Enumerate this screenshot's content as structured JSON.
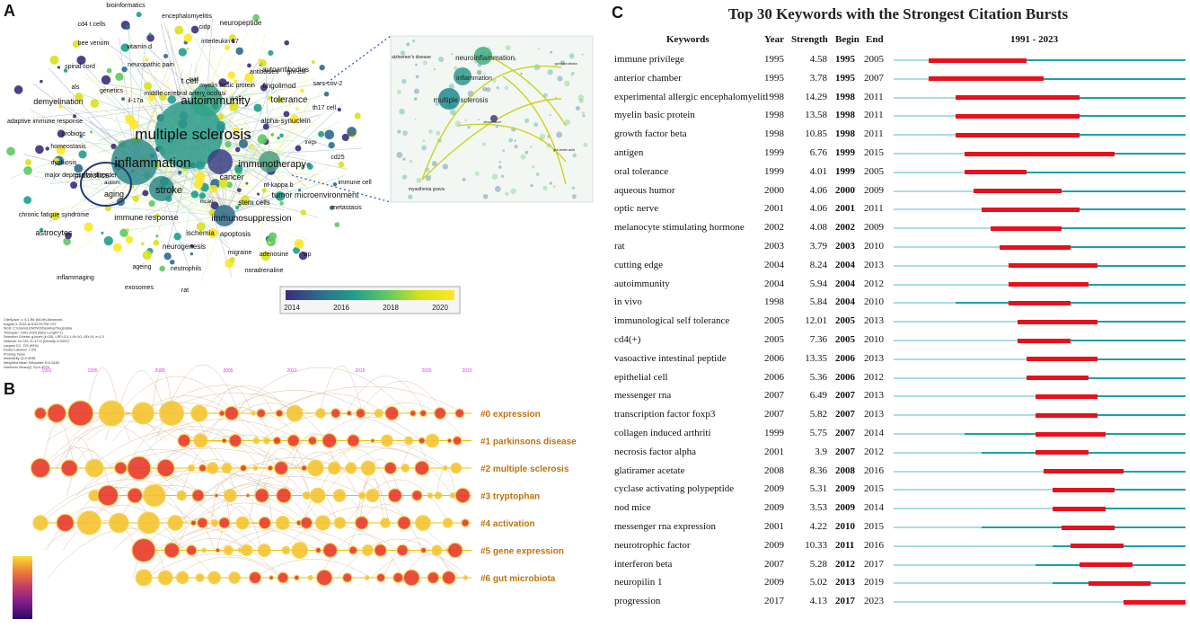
{
  "panel_letters": {
    "a": "A",
    "b": "B",
    "c": "C"
  },
  "chart_data": [
    {
      "type": "network",
      "panel": "A",
      "nodes": [
        {
          "label": "multiple sclerosis",
          "size": 5
        },
        {
          "label": "inflammation",
          "size": 4
        },
        {
          "label": "autoimmunity",
          "size": 3
        },
        {
          "label": "immunotherapy",
          "size": 2
        },
        {
          "label": "stroke",
          "size": 2
        },
        {
          "label": "tolerance",
          "size": 2
        },
        {
          "label": "immunosuppression",
          "size": 2
        },
        {
          "label": "immune response",
          "size": 2
        },
        {
          "label": "cancer",
          "size": 1
        },
        {
          "label": "aging",
          "size": 1
        },
        {
          "label": "probiotics",
          "size": 1
        },
        {
          "label": "demyelination",
          "size": 1
        },
        {
          "label": "t cell",
          "size": 1
        },
        {
          "label": "astrocytes",
          "size": 1
        },
        {
          "label": "apoptosis",
          "size": 1
        },
        {
          "label": "ischemia",
          "size": 1
        },
        {
          "label": "neurogenesis",
          "size": 1
        },
        {
          "label": "tumor microenvironment",
          "size": 1
        },
        {
          "label": "stem cells",
          "size": 1
        },
        {
          "label": "alpha-synuclein",
          "size": 1
        },
        {
          "label": "fingolimod",
          "size": 1
        },
        {
          "label": "autoantibodies",
          "size": 1
        },
        {
          "label": "neuropeptide",
          "size": 1
        },
        {
          "label": "encephalomyelitis",
          "size": 1
        },
        {
          "label": "bioinformatics",
          "size": 1
        },
        {
          "label": "cd4 t cells",
          "size": 1
        },
        {
          "label": "bee venom",
          "size": 1
        },
        {
          "label": "vitamin d",
          "size": 1
        },
        {
          "label": "interleukin 17",
          "size": 1
        },
        {
          "label": "cidp",
          "size": 1
        },
        {
          "label": "neuropathic pain",
          "size": 1
        },
        {
          "label": "spinal cord",
          "size": 1
        },
        {
          "label": "myelin basic protein",
          "size": 1
        },
        {
          "label": "middle cerebral artery occlusi",
          "size": 1
        },
        {
          "label": "antibodies",
          "size": 1
        },
        {
          "label": "gm-csf",
          "size": 1
        },
        {
          "label": "sars-cov-2",
          "size": 1
        },
        {
          "label": "th17 cell",
          "size": 1
        },
        {
          "label": "als",
          "size": 1
        },
        {
          "label": "genetics",
          "size": 1
        },
        {
          "label": "il-17a",
          "size": 1
        },
        {
          "label": "adaptive immune response",
          "size": 1
        },
        {
          "label": "probiotic",
          "size": 1
        },
        {
          "label": "homeostasis",
          "size": 1
        },
        {
          "label": "dysbiosis",
          "size": 1
        },
        {
          "label": "major depressive disorder",
          "size": 1
        },
        {
          "label": "autism",
          "size": 1
        },
        {
          "label": "nf-kappa b",
          "size": 1
        },
        {
          "label": "immune cell",
          "size": 1
        },
        {
          "label": "metastasis",
          "size": 1
        },
        {
          "label": "chronic fatigue syndrome",
          "size": 1
        },
        {
          "label": "migraine",
          "size": 1
        },
        {
          "label": "adenosine",
          "size": 1
        },
        {
          "label": "vip",
          "size": 1
        },
        {
          "label": "inflammaging",
          "size": 1
        },
        {
          "label": "ageing",
          "size": 1
        },
        {
          "label": "neutrophils",
          "size": 1
        },
        {
          "label": "noradrenaline",
          "size": 1
        },
        {
          "label": "exosomes",
          "size": 1
        },
        {
          "label": "rat",
          "size": 1
        },
        {
          "label": "cd25",
          "size": 1
        },
        {
          "label": "tregs",
          "size": 1
        },
        {
          "label": "il-35",
          "size": 1
        },
        {
          "label": "mait",
          "size": 1
        },
        {
          "label": "mcao",
          "size": 1
        }
      ],
      "inset_labels": [
        "neuroinflammation",
        "inflammation",
        "multiple sclerosis",
        "alzheimer's disease",
        "myasthenia gravis",
        "depression",
        "gut microbiota",
        "gut-brain axis"
      ],
      "colorbar": {
        "ticks": [
          "2014",
          "2016",
          "2018",
          "2020"
        ],
        "colors": [
          "#3b2c7a",
          "#2e6a8e",
          "#1f9d8a",
          "#5ec962",
          "#d8e219",
          "#fde725"
        ]
      },
      "info_text": [
        "CiteSpace, v. 6.1.R6 (64-bit) Advanced",
        "August 3, 2023 at 8:42:33 PM CST",
        "WoS: C:\\Users\\LENOVO\\Desktop\\Tregs\\data",
        "Timespan: 1991-2023 (Slice Length=1)",
        "Selection Criteria: g-index (k=25), LRF=3.0, L/N=10, LBY=5, e=1.0",
        "Network: N=729, E=1774 (Density=0.0067)",
        "Largest CC: 729 (99%)",
        "Nodes Labeled: 1.0%",
        "Pruning: None",
        "Modularity Q=0.3038",
        "Weighted Mean Silhouette S=0.6183",
        "Harmonic Mean(Q, S)=0.4075"
      ]
    },
    {
      "type": "timeline",
      "panel": "B",
      "year_ticks": [
        "1991",
        "1995",
        "2000",
        "2005",
        "2010",
        "2015",
        "2020",
        "2023"
      ],
      "clusters": [
        "#0 expression",
        "#1 parkinsons disease",
        "#2 multiple sclerosis",
        "#3 tryptophan",
        "#4 activation",
        "#5 gene expression",
        "#6 gut microbiota"
      ]
    },
    {
      "type": "table",
      "panel": "C",
      "title": "Top 30 Keywords with the Strongest Citation Bursts",
      "headers": {
        "keywords": "Keywords",
        "year": "Year",
        "strength": "Strength",
        "begin": "Begin",
        "end": "End",
        "range": "1991 - 2023"
      },
      "range_start": 1991,
      "range_end": 2023,
      "rows": [
        {
          "keyword": "immune privilege",
          "year": 1995,
          "strength": "4.58",
          "begin": 1995,
          "end": 2005
        },
        {
          "keyword": "anterior chamber",
          "year": 1995,
          "strength": "3.78",
          "begin": 1995,
          "end": 2007
        },
        {
          "keyword": "experimental allergic encephalomyeliti",
          "year": 1998,
          "strength": "14.29",
          "begin": 1998,
          "end": 2011
        },
        {
          "keyword": "myelin basic protein",
          "year": 1998,
          "strength": "13.58",
          "begin": 1998,
          "end": 2011
        },
        {
          "keyword": "growth factor beta",
          "year": 1998,
          "strength": "10.85",
          "begin": 1998,
          "end": 2011
        },
        {
          "keyword": "antigen",
          "year": 1999,
          "strength": "6.76",
          "begin": 1999,
          "end": 2015
        },
        {
          "keyword": "oral tolerance",
          "year": 1999,
          "strength": "4.01",
          "begin": 1999,
          "end": 2005
        },
        {
          "keyword": "aqueous humor",
          "year": 2000,
          "strength": "4.06",
          "begin": 2000,
          "end": 2009
        },
        {
          "keyword": "optic nerve",
          "year": 2001,
          "strength": "4.06",
          "begin": 2001,
          "end": 2011
        },
        {
          "keyword": "melanocyte stimulating hormone",
          "year": 2002,
          "strength": "4.08",
          "begin": 2002,
          "end": 2009
        },
        {
          "keyword": "rat",
          "year": 2003,
          "strength": "3.79",
          "begin": 2003,
          "end": 2010
        },
        {
          "keyword": "cutting edge",
          "year": 2004,
          "strength": "8.24",
          "begin": 2004,
          "end": 2013
        },
        {
          "keyword": "autoimmunity",
          "year": 2004,
          "strength": "5.94",
          "begin": 2004,
          "end": 2012
        },
        {
          "keyword": "in vivo",
          "year": 1998,
          "strength": "5.84",
          "begin": 2004,
          "end": 2010
        },
        {
          "keyword": "immunological self tolerance",
          "year": 2005,
          "strength": "12.01",
          "begin": 2005,
          "end": 2013
        },
        {
          "keyword": "cd4(+)",
          "year": 2005,
          "strength": "7.36",
          "begin": 2005,
          "end": 2010
        },
        {
          "keyword": "vasoactive intestinal peptide",
          "year": 2006,
          "strength": "13.35",
          "begin": 2006,
          "end": 2013
        },
        {
          "keyword": "epithelial cell",
          "year": 2006,
          "strength": "5.36",
          "begin": 2006,
          "end": 2012
        },
        {
          "keyword": "messenger rna",
          "year": 2007,
          "strength": "6.49",
          "begin": 2007,
          "end": 2013
        },
        {
          "keyword": "transcription factor foxp3",
          "year": 2007,
          "strength": "5.82",
          "begin": 2007,
          "end": 2013
        },
        {
          "keyword": "collagen induced arthriti",
          "year": 1999,
          "strength": "5.75",
          "begin": 2007,
          "end": 2014
        },
        {
          "keyword": "necrosis factor alpha",
          "year": 2001,
          "strength": "3.9",
          "begin": 2007,
          "end": 2012
        },
        {
          "keyword": "glatiramer acetate",
          "year": 2008,
          "strength": "8.36",
          "begin": 2008,
          "end": 2016
        },
        {
          "keyword": "cyclase activating polypeptide",
          "year": 2009,
          "strength": "5.31",
          "begin": 2009,
          "end": 2015
        },
        {
          "keyword": "nod mice",
          "year": 2009,
          "strength": "3.53",
          "begin": 2009,
          "end": 2014
        },
        {
          "keyword": "messenger rna expression",
          "year": 2001,
          "strength": "4.22",
          "begin": 2010,
          "end": 2015
        },
        {
          "keyword": "neurotrophic factor",
          "year": 2009,
          "strength": "10.33",
          "begin": 2011,
          "end": 2016
        },
        {
          "keyword": "interferon beta",
          "year": 2007,
          "strength": "5.28",
          "begin": 2012,
          "end": 2017
        },
        {
          "keyword": "neuropilin 1",
          "year": 2009,
          "strength": "5.02",
          "begin": 2013,
          "end": 2019
        },
        {
          "keyword": "progression",
          "year": 2017,
          "strength": "4.13",
          "begin": 2017,
          "end": 2023
        }
      ]
    }
  ],
  "colors": {
    "burst": "#e8101a",
    "active": "#1ba0ac",
    "inactive": "#a8dde4",
    "cluster_label": "#c0720c",
    "timeline_year": "#e040e0"
  }
}
